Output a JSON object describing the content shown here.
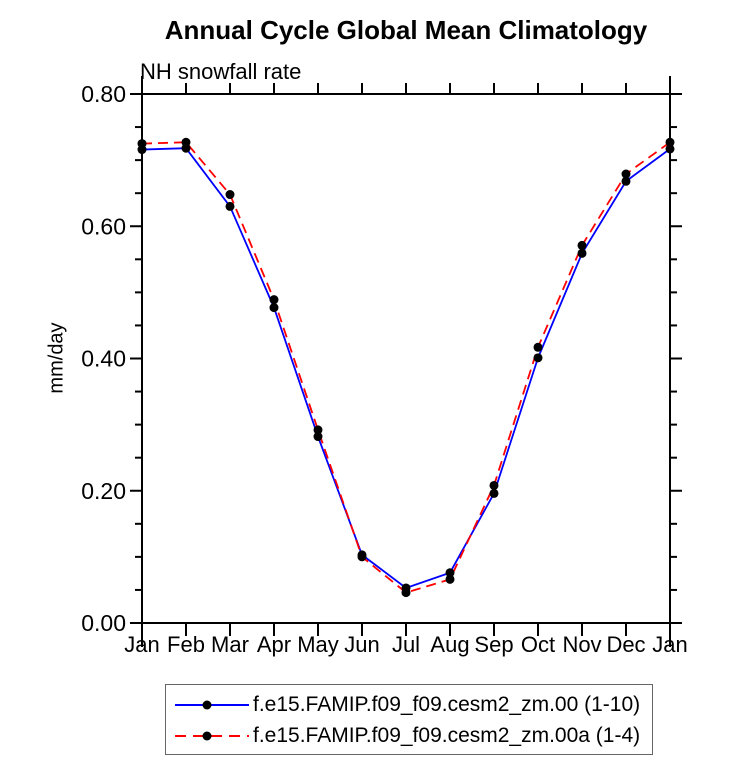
{
  "chart_data": {
    "type": "line",
    "title": "Annual Cycle Global Mean Climatology",
    "subtitle": "NH snowfall rate",
    "ylabel": "mm/day",
    "xlabel": "",
    "categories": [
      "Jan",
      "Feb",
      "Mar",
      "Apr",
      "May",
      "Jun",
      "Jul",
      "Aug",
      "Sep",
      "Oct",
      "Nov",
      "Dec",
      "Jan"
    ],
    "series": [
      {
        "name": "f.e15.FAMIP.f09_f09.cesm2_zm.00 (1-10)",
        "line_style": "solid",
        "color": "#0000ff",
        "marker": "circle",
        "marker_color": "#000000",
        "values": [
          0.716,
          0.718,
          0.63,
          0.477,
          0.282,
          0.103,
          0.053,
          0.076,
          0.196,
          0.401,
          0.559,
          0.668,
          0.717
        ]
      },
      {
        "name": "f.e15.FAMIP.f09_f09.cesm2_zm.00a (1-4)",
        "line_style": "dashed",
        "color": "#ff0000",
        "marker": "circle",
        "marker_color": "#000000",
        "values": [
          0.725,
          0.727,
          0.648,
          0.489,
          0.292,
          0.1,
          0.046,
          0.066,
          0.208,
          0.417,
          0.571,
          0.679,
          0.727
        ]
      }
    ],
    "ylim": [
      0.0,
      0.8
    ],
    "y_major_tick_step": 0.2,
    "y_minor_tick_step": 0.05,
    "y_tick_labels": [
      "0.00",
      "0.20",
      "0.40",
      "0.60",
      "0.80"
    ],
    "grid": false,
    "legend_position": "bottom",
    "axis_color": "#000000",
    "tick_direction": "out"
  }
}
